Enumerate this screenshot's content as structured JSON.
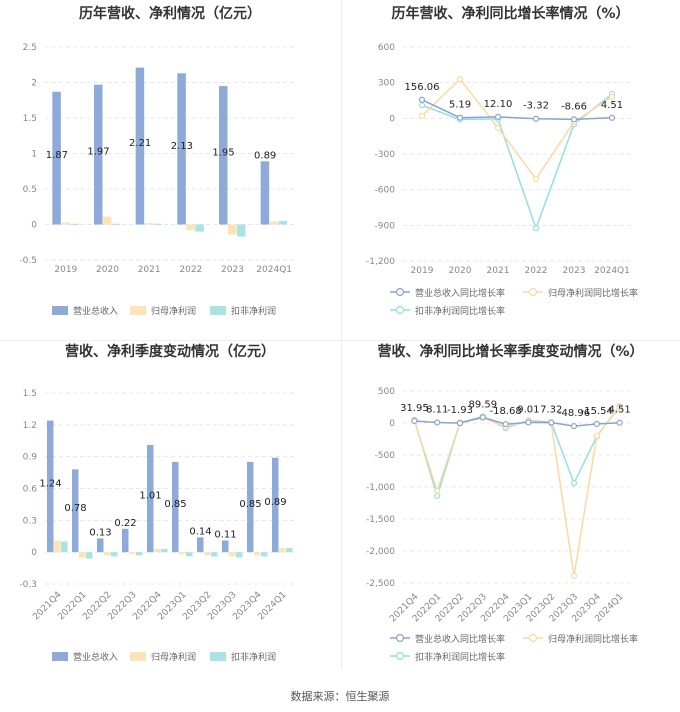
{
  "footer": "数据来源：恒生聚源",
  "legend_labels": {
    "revenue": "营业总收入",
    "net_profit": "归母净利润",
    "deducted_net_profit": "扣非净利润",
    "revenue_growth": "营业总收入同比增长率",
    "net_profit_growth": "归母净利润同比增长率",
    "deducted_growth": "扣非净利润同比增长率"
  },
  "colors": {
    "revenue": "#8eaad9",
    "net_profit": "#fde3b5",
    "deducted": "#a9e3e3",
    "revenue_line": "#8ba3d1",
    "net_profit_line": "#fbd9a2",
    "deducted_line": "#92dfe3",
    "grid": "#e8e8e8",
    "axis_text": "#888888",
    "title": "#333333"
  },
  "chart_data": [
    {
      "type": "bar",
      "title": "历年营收、净利情况（亿元）",
      "categories": [
        "2019",
        "2020",
        "2021",
        "2022",
        "2023",
        "2024Q1"
      ],
      "yticks": [
        "2.5",
        "2",
        "1.5",
        "1",
        "0.5",
        "0",
        "-0.5"
      ],
      "ylim": [
        -0.5,
        2.5
      ],
      "series": [
        {
          "name": "营业总收入",
          "values": [
            1.87,
            1.97,
            2.21,
            2.13,
            1.95,
            0.89
          ],
          "labels": [
            "1.87",
            "1.97",
            "2.21",
            "2.13",
            "1.95",
            "0.89"
          ]
        },
        {
          "name": "归母净利润",
          "values": [
            0.03,
            0.11,
            0.02,
            -0.08,
            -0.14,
            0.04
          ]
        },
        {
          "name": "扣非净利润",
          "values": [
            0.01,
            0.01,
            0.01,
            -0.1,
            -0.17,
            0.05
          ]
        }
      ],
      "legend": "bottom"
    },
    {
      "type": "line",
      "title": "历年营收、净利同比增长率情况（%）",
      "categories": [
        "2019",
        "2020",
        "2021",
        "2022",
        "2023",
        "2024Q1"
      ],
      "yticks": [
        "600",
        "300",
        "0",
        "-300",
        "-600",
        "-900",
        "-1,200"
      ],
      "ylim": [
        -1200,
        600
      ],
      "series": [
        {
          "name": "营业总收入同比增长率",
          "values": [
            156.06,
            5.19,
            12.1,
            -3.32,
            -8.66,
            4.51
          ],
          "labels": [
            "156.06",
            "5.19",
            "12.10",
            "-3.32",
            "-8.66",
            "4.51"
          ]
        },
        {
          "name": "归母净利润同比增长率",
          "values": [
            20,
            330,
            -80,
            -510,
            -30,
            180
          ]
        },
        {
          "name": "扣非净利润同比增长率",
          "values": [
            110,
            -10,
            -5,
            -925,
            -50,
            205
          ]
        }
      ],
      "legend": "bottom"
    },
    {
      "type": "bar",
      "title": "营收、净利季度变动情况（亿元）",
      "categories": [
        "2021Q4",
        "2022Q1",
        "2022Q2",
        "2022Q3",
        "2022Q4",
        "2023Q1",
        "2023Q2",
        "2023Q3",
        "2023Q4",
        "2024Q1"
      ],
      "yticks": [
        "1.5",
        "1.2",
        "0.9",
        "0.6",
        "0.3",
        "0",
        "-0.3"
      ],
      "ylim": [
        -0.3,
        1.5
      ],
      "series": [
        {
          "name": "营业总收入",
          "values": [
            1.24,
            0.78,
            0.13,
            0.22,
            1.01,
            0.85,
            0.14,
            0.11,
            0.85,
            0.89
          ],
          "labels": [
            "1.24",
            "0.78",
            "0.13",
            "0.22",
            "1.01",
            "0.85",
            "0.14",
            "0.11",
            "0.85",
            "0.89"
          ]
        },
        {
          "name": "归母净利润",
          "values": [
            0.11,
            -0.05,
            -0.03,
            -0.02,
            0.03,
            -0.02,
            -0.03,
            -0.04,
            -0.03,
            0.04
          ]
        },
        {
          "name": "扣非净利润",
          "values": [
            0.1,
            -0.06,
            -0.04,
            -0.03,
            0.03,
            -0.04,
            -0.04,
            -0.05,
            -0.04,
            0.04
          ]
        }
      ],
      "legend": "bottom"
    },
    {
      "type": "line",
      "title": "营收、净利同比增长率季度变动情况（%）",
      "categories": [
        "2021Q4",
        "2022Q1",
        "2022Q2",
        "2022Q3",
        "2022Q4",
        "2023Q1",
        "2023Q2",
        "2023Q3",
        "2023Q4",
        "2024Q1"
      ],
      "yticks": [
        "500",
        "0",
        "-500",
        "-1,000",
        "-1,500",
        "-2,000",
        "-2,500"
      ],
      "ylim": [
        -2500,
        500
      ],
      "series": [
        {
          "name": "营业总收入同比增长率",
          "values": [
            31.95,
            8.11,
            -1.93,
            89.59,
            -18.68,
            9.01,
            7.32,
            -48.96,
            -15.54,
            4.51
          ],
          "labels": [
            "31.95",
            "8.11",
            "-1.93",
            "89.59",
            "-18.68",
            "9.01",
            "7.32",
            "-48.96",
            "-15.54",
            "4.51"
          ]
        },
        {
          "name": "归母净利润同比增长率",
          "values": [
            40,
            -1060,
            10,
            80,
            -60,
            30,
            -5,
            -2390,
            -200,
            240
          ]
        },
        {
          "name": "扣非净利润同比增长率",
          "values": [
            50,
            -1140,
            5,
            100,
            -80,
            40,
            10,
            -940,
            -210,
            260
          ]
        }
      ],
      "legend": "bottom"
    }
  ]
}
